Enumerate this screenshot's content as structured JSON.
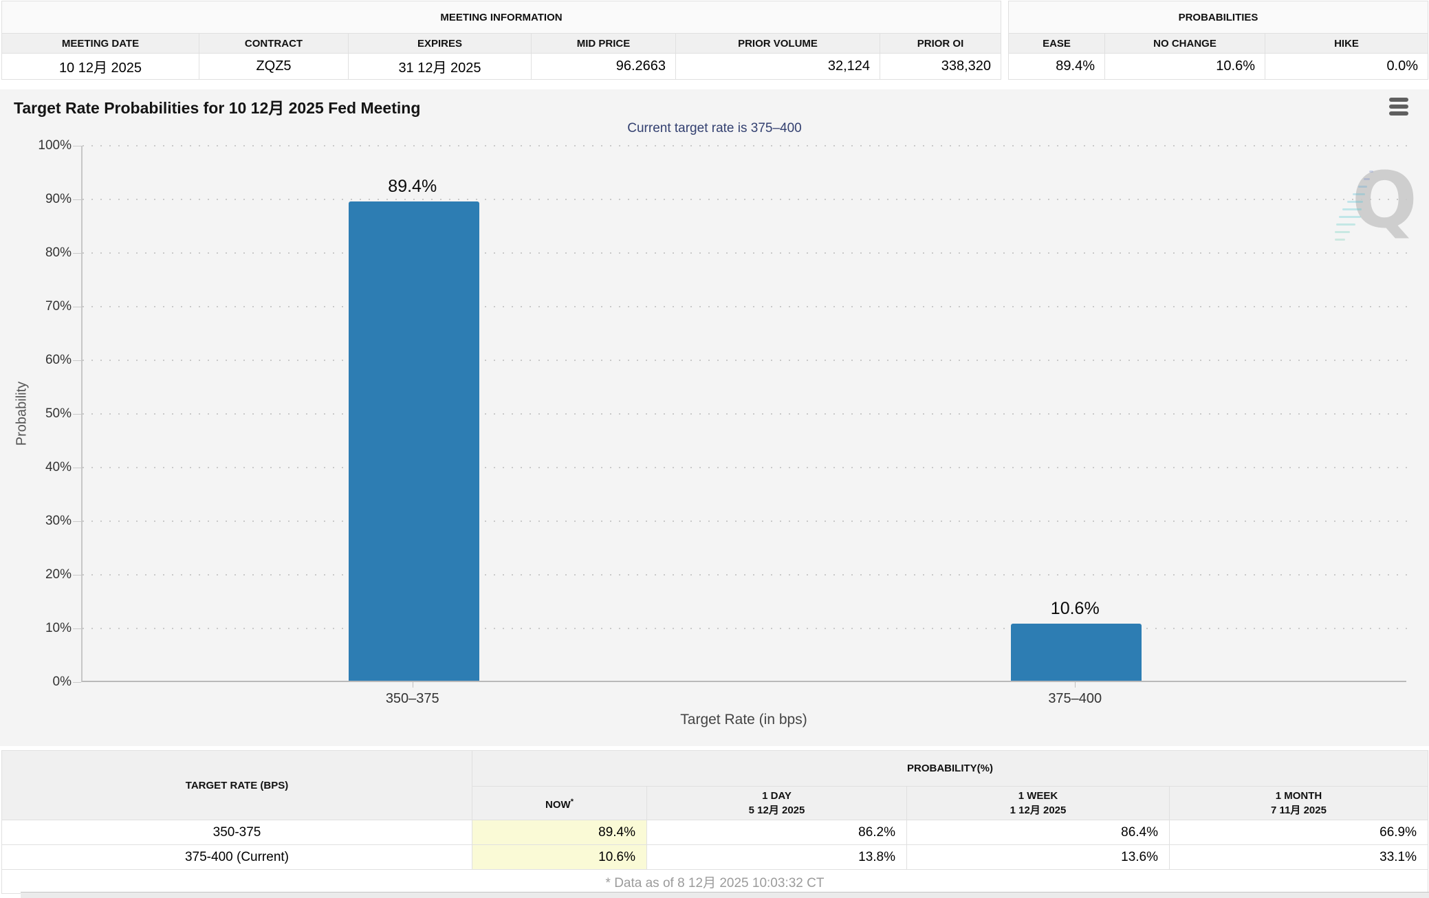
{
  "meeting_information": {
    "title": "MEETING INFORMATION",
    "headers": [
      "MEETING DATE",
      "CONTRACT",
      "EXPIRES",
      "MID PRICE",
      "PRIOR VOLUME",
      "PRIOR OI"
    ],
    "values": [
      "10 12月 2025",
      "ZQZ5",
      "31 12月 2025",
      "96.2663",
      "32,124",
      "338,320"
    ]
  },
  "probabilities_panel": {
    "title": "PROBABILITIES",
    "headers": [
      "EASE",
      "NO CHANGE",
      "HIKE"
    ],
    "values": [
      "89.4%",
      "10.6%",
      "0.0%"
    ]
  },
  "chart_data": {
    "type": "bar",
    "title": "Target Rate Probabilities for 10 12月 2025 Fed Meeting",
    "subtitle": "Current target rate is 375–400",
    "categories": [
      "350–375",
      "375–400"
    ],
    "values": [
      89.4,
      10.6
    ],
    "value_labels": [
      "89.4%",
      "10.6%"
    ],
    "xlabel": "Target Rate (in bps)",
    "ylabel": "Probability",
    "ylim": [
      0,
      100
    ],
    "ytick_step": 10,
    "ytick_suffix": "%",
    "grid": "dotted horizontal",
    "bar_color": "#2d7db3",
    "watermark_letter": "Q"
  },
  "probability_table": {
    "col1_header": "TARGET RATE (BPS)",
    "group_header": "PROBABILITY(%)",
    "sub_headers": {
      "now": "NOW",
      "now_sup": "*",
      "day1_line1": "1 DAY",
      "day1_line2": "5 12月 2025",
      "week1_line1": "1 WEEK",
      "week1_line2": "1 12月 2025",
      "month1_line1": "1 MONTH",
      "month1_line2": "7 11月 2025"
    },
    "rows": [
      {
        "rate": "350-375",
        "now": "89.4%",
        "day": "86.2%",
        "week": "86.4%",
        "month": "66.9%"
      },
      {
        "rate": "375-400 (Current)",
        "now": "10.6%",
        "day": "13.8%",
        "week": "13.6%",
        "month": "33.1%"
      }
    ],
    "footnote": "* Data as of 8 12月 2025 10:03:32 CT"
  },
  "colors": {
    "bar": "#2d7db3",
    "subtitle": "#334070",
    "highlight_cell": "#fafad6",
    "chart_background": "#f4f4f4"
  }
}
